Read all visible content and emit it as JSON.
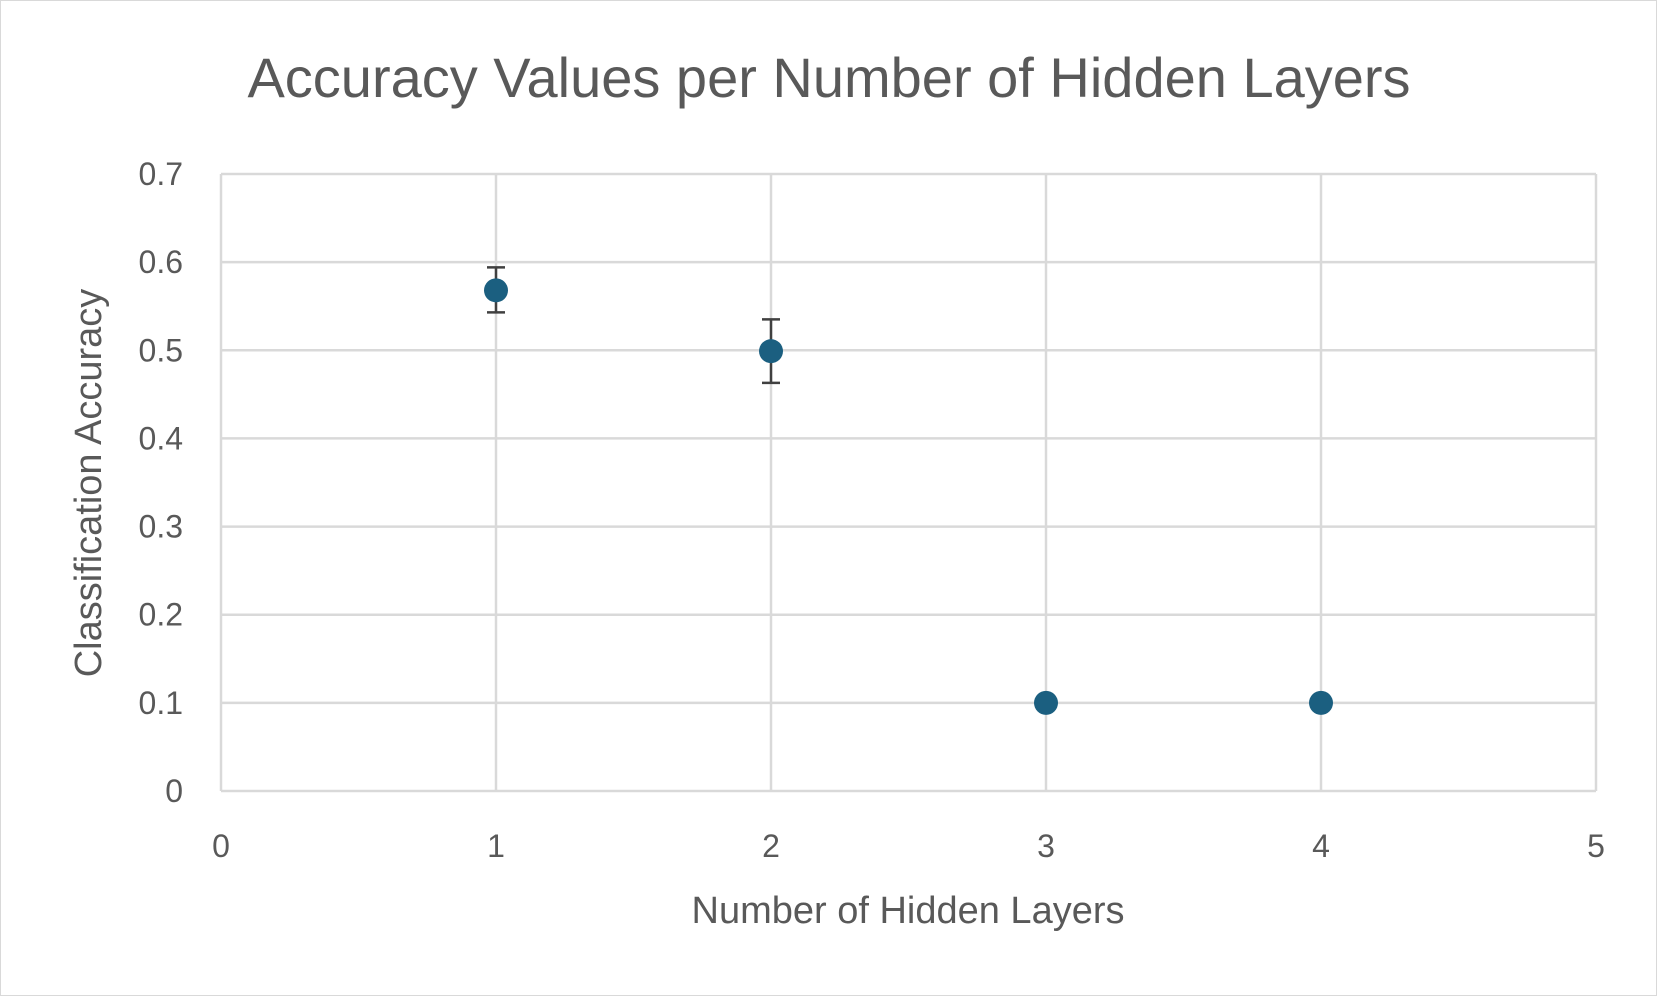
{
  "chart_data": {
    "type": "scatter",
    "title": "Accuracy Values per Number of Hidden Layers",
    "xlabel": "Number of Hidden Layers",
    "ylabel": "Classification Accuracy",
    "xlim": [
      0,
      5
    ],
    "ylim": [
      0,
      0.7
    ],
    "x_ticks": [
      0,
      1,
      2,
      3,
      4,
      5
    ],
    "x_tick_labels": [
      "0",
      "1",
      "2",
      "3",
      "4",
      "5"
    ],
    "y_ticks": [
      0,
      0.1,
      0.2,
      0.3,
      0.4,
      0.5,
      0.6,
      0.7
    ],
    "y_tick_labels": [
      "0",
      "0.1",
      "0.2",
      "0.3",
      "0.4",
      "0.5",
      "0.6",
      "0.7"
    ],
    "grid": true,
    "legend": "none",
    "marker_color": "#1b5f80",
    "points": [
      {
        "x": 1,
        "y": 0.568,
        "err_low": 0.543,
        "err_high": 0.594
      },
      {
        "x": 2,
        "y": 0.499,
        "err_low": 0.463,
        "err_high": 0.535
      },
      {
        "x": 3,
        "y": 0.1,
        "err_low": 0.1,
        "err_high": 0.1
      },
      {
        "x": 4,
        "y": 0.1,
        "err_low": 0.1,
        "err_high": 0.1
      }
    ]
  }
}
